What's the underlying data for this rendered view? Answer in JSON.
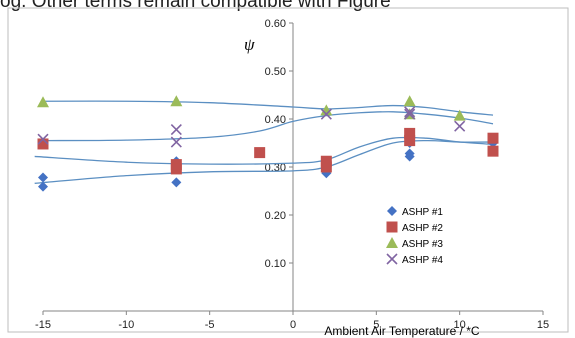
{
  "header_text": "og. Other terms remain compatible with Figure",
  "chart_data": {
    "type": "scatter",
    "title": "",
    "xlabel": "Ambient Air Temperature / *C",
    "ylabel": "ψ",
    "xlim": [
      -15,
      15
    ],
    "ylim": [
      0,
      0.6
    ],
    "xticks": [
      "-15",
      "-10",
      "-5",
      "0",
      "5",
      "10",
      "15"
    ],
    "yticks": [
      "0.10",
      "0.20",
      "0.30",
      "0.40",
      "0.50",
      "0.60"
    ],
    "grid": false,
    "legend_position": "lower-right inside",
    "series": [
      {
        "name": "ASHP #1",
        "marker": "diamond",
        "color": "#4472C4",
        "points": [
          [
            -15,
            0.278
          ],
          [
            -15,
            0.259
          ],
          [
            -7,
            0.312
          ],
          [
            -7,
            0.268
          ],
          [
            2,
            0.308
          ],
          [
            2,
            0.287
          ],
          [
            7,
            0.35
          ],
          [
            7,
            0.328
          ],
          [
            7,
            0.322
          ],
          [
            12,
            0.35
          ],
          [
            12,
            0.338
          ]
        ],
        "trend": [
          [
            -15.5,
            0.266
          ],
          [
            -10,
            0.282
          ],
          [
            -5,
            0.29
          ],
          [
            0,
            0.292
          ],
          [
            2,
            0.3
          ],
          [
            4,
            0.326
          ],
          [
            6,
            0.35
          ],
          [
            8,
            0.355
          ],
          [
            10,
            0.352
          ],
          [
            12,
            0.352
          ]
        ]
      },
      {
        "name": "ASHP #2",
        "marker": "square",
        "color": "#C0504D",
        "points": [
          [
            -15,
            0.348
          ],
          [
            -7,
            0.305
          ],
          [
            -7,
            0.296
          ],
          [
            -2,
            0.33
          ],
          [
            2,
            0.312
          ],
          [
            2,
            0.3
          ],
          [
            7,
            0.37
          ],
          [
            7,
            0.355
          ],
          [
            12,
            0.36
          ],
          [
            12,
            0.333
          ]
        ],
        "trend": [
          [
            -15.5,
            0.322
          ],
          [
            -10,
            0.31
          ],
          [
            -5,
            0.306
          ],
          [
            0,
            0.308
          ],
          [
            2,
            0.315
          ],
          [
            4,
            0.342
          ],
          [
            6,
            0.36
          ],
          [
            8,
            0.36
          ],
          [
            10,
            0.352
          ],
          [
            12,
            0.347
          ]
        ]
      },
      {
        "name": "ASHP #3",
        "marker": "triangle",
        "color": "#9BBB59",
        "points": [
          [
            -15,
            0.435
          ],
          [
            -7,
            0.437
          ],
          [
            2,
            0.418
          ],
          [
            7,
            0.437
          ],
          [
            7,
            0.41
          ],
          [
            10,
            0.407
          ]
        ],
        "trend": [
          [
            -15,
            0.437
          ],
          [
            -10,
            0.437
          ],
          [
            -5,
            0.434
          ],
          [
            0,
            0.425
          ],
          [
            2,
            0.421
          ],
          [
            4,
            0.424
          ],
          [
            6,
            0.428
          ],
          [
            8,
            0.424
          ],
          [
            10,
            0.415
          ],
          [
            12,
            0.408
          ]
        ]
      },
      {
        "name": "ASHP #4",
        "marker": "x",
        "color": "#8064A2",
        "points": [
          [
            -15,
            0.358
          ],
          [
            -7,
            0.378
          ],
          [
            -7,
            0.352
          ],
          [
            2,
            0.41
          ],
          [
            7,
            0.415
          ],
          [
            7,
            0.41
          ],
          [
            10,
            0.385
          ]
        ],
        "trend": [
          [
            -15,
            0.355
          ],
          [
            -10,
            0.356
          ],
          [
            -5,
            0.362
          ],
          [
            -2,
            0.375
          ],
          [
            0,
            0.395
          ],
          [
            2,
            0.407
          ],
          [
            4,
            0.413
          ],
          [
            6,
            0.415
          ],
          [
            8,
            0.41
          ],
          [
            10,
            0.402
          ],
          [
            12,
            0.39
          ]
        ]
      }
    ]
  }
}
